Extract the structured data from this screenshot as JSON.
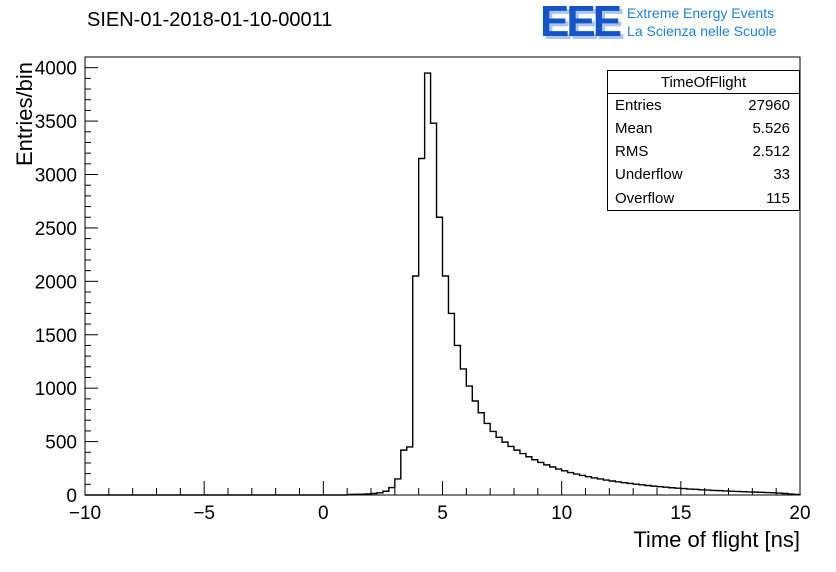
{
  "header": {
    "title": "SIEN-01-2018-01-10-00011"
  },
  "logo": {
    "acronym": "EEE",
    "line1": "Extreme Energy Events",
    "line2": "La Scienza nelle Scuole",
    "acronym_color": "#1553c8",
    "acronym_shadow_color": "#a9c6f2",
    "text_color": "#1e7fe0"
  },
  "stats": {
    "title": "TimeOfFlight",
    "rows": [
      {
        "label": "Entries",
        "value": "27960"
      },
      {
        "label": "Mean",
        "value": "5.526"
      },
      {
        "label": "RMS",
        "value": "2.512"
      },
      {
        "label": "Underflow",
        "value": "33"
      },
      {
        "label": "Overflow",
        "value": "115"
      }
    ]
  },
  "chart_data": {
    "type": "bar",
    "style": "root-step-histogram",
    "title": "SIEN-01-2018-01-10-00011",
    "xlabel": "Time of flight [ns]",
    "ylabel": "Entries/bin",
    "xlim": [
      -10,
      20
    ],
    "ylim": [
      0,
      4100
    ],
    "grid": false,
    "line_color": "#000000",
    "x_ticks": {
      "values": [
        -10,
        -5,
        0,
        5,
        10,
        15,
        20
      ],
      "labels": [
        "−10",
        "−5",
        "0",
        "5",
        "10",
        "15",
        "20"
      ]
    },
    "y_ticks": {
      "values": [
        0,
        500,
        1000,
        1500,
        2000,
        2500,
        3000,
        3500,
        4000
      ],
      "labels": [
        "0",
        "500",
        "1000",
        "1500",
        "2000",
        "2500",
        "3000",
        "3500",
        "4000"
      ]
    },
    "x_minor_step": 1,
    "y_minor_step": 100,
    "bins": {
      "start": 1.0,
      "width": 0.25,
      "values": [
        5,
        6,
        8,
        10,
        14,
        20,
        35,
        70,
        150,
        420,
        450,
        2050,
        3150,
        3950,
        3480,
        2600,
        2050,
        1700,
        1400,
        1180,
        1020,
        880,
        770,
        670,
        595,
        540,
        495,
        455,
        420,
        388,
        358,
        330,
        305,
        282,
        262,
        243,
        226,
        210,
        196,
        183,
        171,
        160,
        150,
        140,
        131,
        123,
        115,
        108,
        101,
        95,
        89,
        83,
        78,
        73,
        68,
        64,
        60,
        56,
        53,
        49,
        46,
        43,
        41,
        38,
        36,
        33,
        31,
        29,
        27,
        25,
        23,
        21,
        18,
        14,
        9,
        5
      ]
    }
  }
}
